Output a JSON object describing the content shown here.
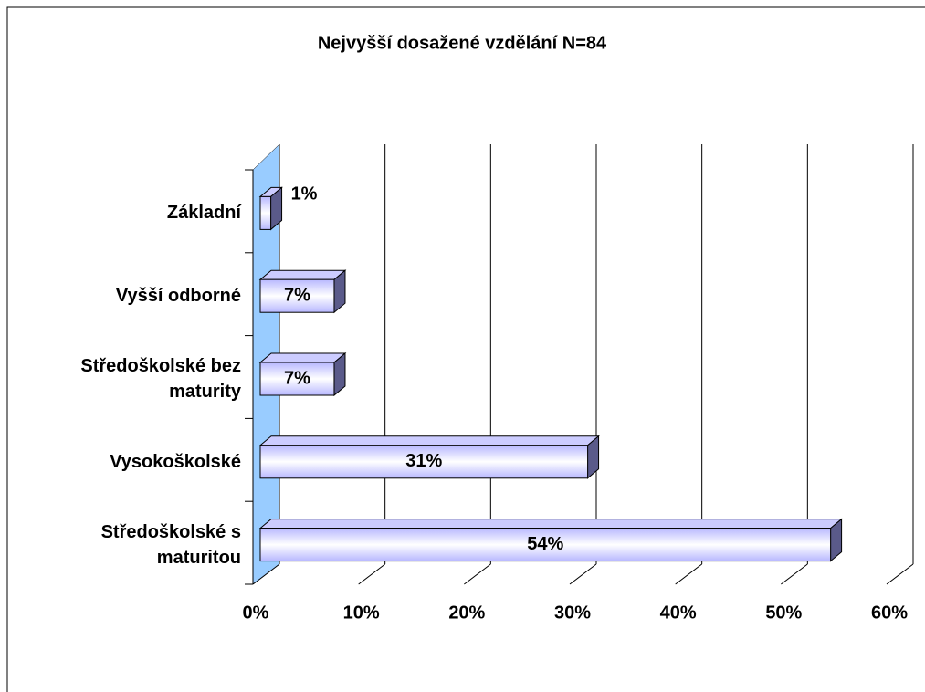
{
  "chart_data": {
    "type": "bar",
    "orientation": "horizontal",
    "title": "Nejvyšší dosažené vzdělání N=84",
    "categories": [
      "Základní",
      "Vyšší odborné",
      "Středoškolské bez maturity",
      "Vysokoškolské",
      "Středoškolské s maturitou"
    ],
    "values": [
      1,
      7,
      7,
      31,
      54
    ],
    "value_labels": [
      "1%",
      "7%",
      "7%",
      "31%",
      "54%"
    ],
    "color": "#9999ff",
    "xlim": [
      0,
      60
    ],
    "xticks": [
      {
        "value": 0,
        "label": "0%"
      },
      {
        "value": 10,
        "label": "10%"
      },
      {
        "value": 20,
        "label": "20%"
      },
      {
        "value": 30,
        "label": "30%"
      },
      {
        "value": 40,
        "label": "40%"
      },
      {
        "value": 50,
        "label": "50%"
      },
      {
        "value": 60,
        "label": "60%"
      }
    ],
    "grid": true
  }
}
